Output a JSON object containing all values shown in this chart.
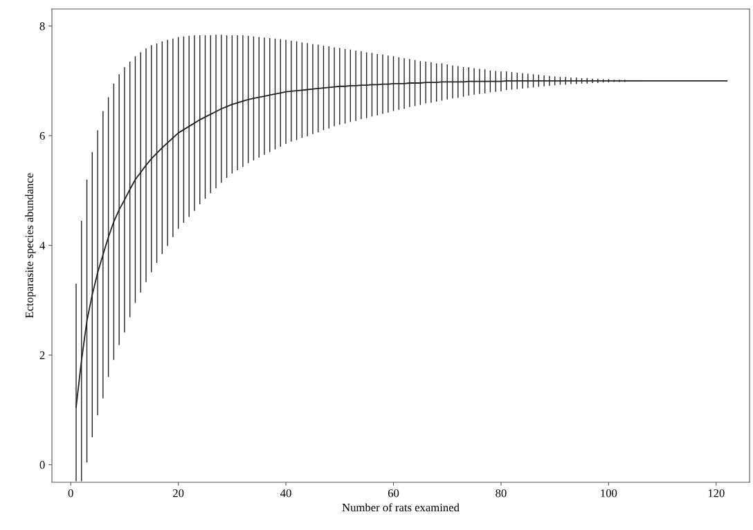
{
  "chart_data": {
    "type": "line",
    "xlabel": "Number of rats examined",
    "ylabel": "Ectoparasite species abundance",
    "x": [
      1,
      2,
      3,
      4,
      5,
      6,
      7,
      8,
      9,
      10,
      11,
      12,
      13,
      14,
      15,
      16,
      17,
      18,
      19,
      20,
      21,
      22,
      23,
      24,
      25,
      26,
      27,
      28,
      29,
      30,
      31,
      32,
      33,
      34,
      35,
      36,
      37,
      38,
      39,
      40,
      41,
      42,
      43,
      44,
      45,
      46,
      47,
      48,
      49,
      50,
      51,
      52,
      53,
      54,
      55,
      56,
      57,
      58,
      59,
      60,
      61,
      62,
      63,
      64,
      65,
      66,
      67,
      68,
      69,
      70,
      71,
      72,
      73,
      74,
      75,
      76,
      77,
      78,
      79,
      80,
      81,
      82,
      83,
      84,
      85,
      86,
      87,
      88,
      89,
      90,
      91,
      92,
      93,
      94,
      95,
      96,
      97,
      98,
      99,
      100,
      101,
      102,
      103,
      104,
      105,
      106,
      107,
      108,
      109,
      110,
      111,
      112,
      113,
      114,
      115,
      116,
      117,
      118,
      119,
      120,
      121,
      122
    ],
    "series": [
      {
        "color": "#222222",
        "values": [
          1.05,
          1.9,
          2.62,
          3.1,
          3.5,
          3.83,
          4.15,
          4.43,
          4.65,
          4.83,
          5.02,
          5.2,
          5.33,
          5.46,
          5.58,
          5.68,
          5.78,
          5.87,
          5.96,
          6.05,
          6.11,
          6.17,
          6.23,
          6.29,
          6.34,
          6.39,
          6.44,
          6.49,
          6.53,
          6.57,
          6.6,
          6.63,
          6.66,
          6.68,
          6.7,
          6.72,
          6.74,
          6.76,
          6.78,
          6.8,
          6.81,
          6.82,
          6.83,
          6.84,
          6.85,
          6.86,
          6.87,
          6.88,
          6.89,
          6.9,
          6.9,
          6.91,
          6.91,
          6.92,
          6.92,
          6.93,
          6.93,
          6.94,
          6.94,
          6.95,
          6.95,
          6.95,
          6.96,
          6.96,
          6.96,
          6.97,
          6.97,
          6.97,
          6.98,
          6.98,
          6.98,
          6.98,
          6.98,
          6.99,
          6.99,
          6.99,
          6.99,
          6.99,
          6.99,
          6.99,
          7.0,
          7.0,
          7.0,
          7.0,
          7.0,
          7.0,
          7.0,
          7.0,
          7.0,
          7.0,
          7.0,
          7.0,
          7.0,
          7.0,
          7.0,
          7.0,
          7.0,
          7.0,
          7.0,
          7.0,
          7.0,
          7.0,
          7.0,
          7.0,
          7.0,
          7.0,
          7.0,
          7.0,
          7.0,
          7.0,
          7.0,
          7.0,
          7.0,
          7.0,
          7.0,
          7.0,
          7.0,
          7.0,
          7.0,
          7.0,
          7.0,
          7.0
        ],
        "errors": [
          [
            -0.3,
            3.3
          ],
          [
            -0.3,
            4.45
          ],
          2.58,
          2.6,
          2.6,
          2.62,
          2.55,
          2.52,
          2.47,
          2.42,
          2.33,
          2.25,
          2.19,
          2.13,
          2.07,
          2.0,
          1.94,
          1.88,
          1.81,
          1.75,
          1.7,
          1.65,
          1.6,
          1.54,
          1.49,
          1.44,
          1.4,
          1.35,
          1.3,
          1.26,
          1.23,
          1.2,
          1.16,
          1.13,
          1.1,
          1.07,
          1.04,
          1.01,
          0.98,
          0.95,
          0.92,
          0.9,
          0.87,
          0.85,
          0.82,
          0.8,
          0.77,
          0.75,
          0.72,
          0.7,
          0.68,
          0.66,
          0.64,
          0.62,
          0.6,
          0.58,
          0.56,
          0.54,
          0.52,
          0.5,
          0.48,
          0.46,
          0.44,
          0.42,
          0.4,
          0.38,
          0.37,
          0.35,
          0.34,
          0.32,
          0.3,
          0.29,
          0.27,
          0.26,
          0.24,
          0.23,
          0.22,
          0.2,
          0.19,
          0.18,
          0.17,
          0.16,
          0.15,
          0.14,
          0.13,
          0.12,
          0.11,
          0.1,
          0.09,
          0.08,
          0.07,
          0.07,
          0.06,
          0.06,
          0.05,
          0.05,
          0.04,
          0.04,
          0.03,
          0.03,
          0.02,
          0.02,
          0.02,
          0.01,
          0.01,
          0.01,
          null,
          null,
          null,
          null,
          null,
          null,
          null,
          null,
          null,
          null,
          null,
          null,
          null,
          null,
          null,
          null
        ]
      }
    ],
    "xlim": [
      -3.5,
      126.2
    ],
    "ylim": [
      -0.32,
      8.31
    ],
    "xticks": [
      0,
      20,
      40,
      60,
      80,
      100,
      120
    ],
    "yticks": [
      0,
      2,
      4,
      6,
      8
    ],
    "grid": false,
    "marker": "none",
    "line_style": "solid"
  }
}
